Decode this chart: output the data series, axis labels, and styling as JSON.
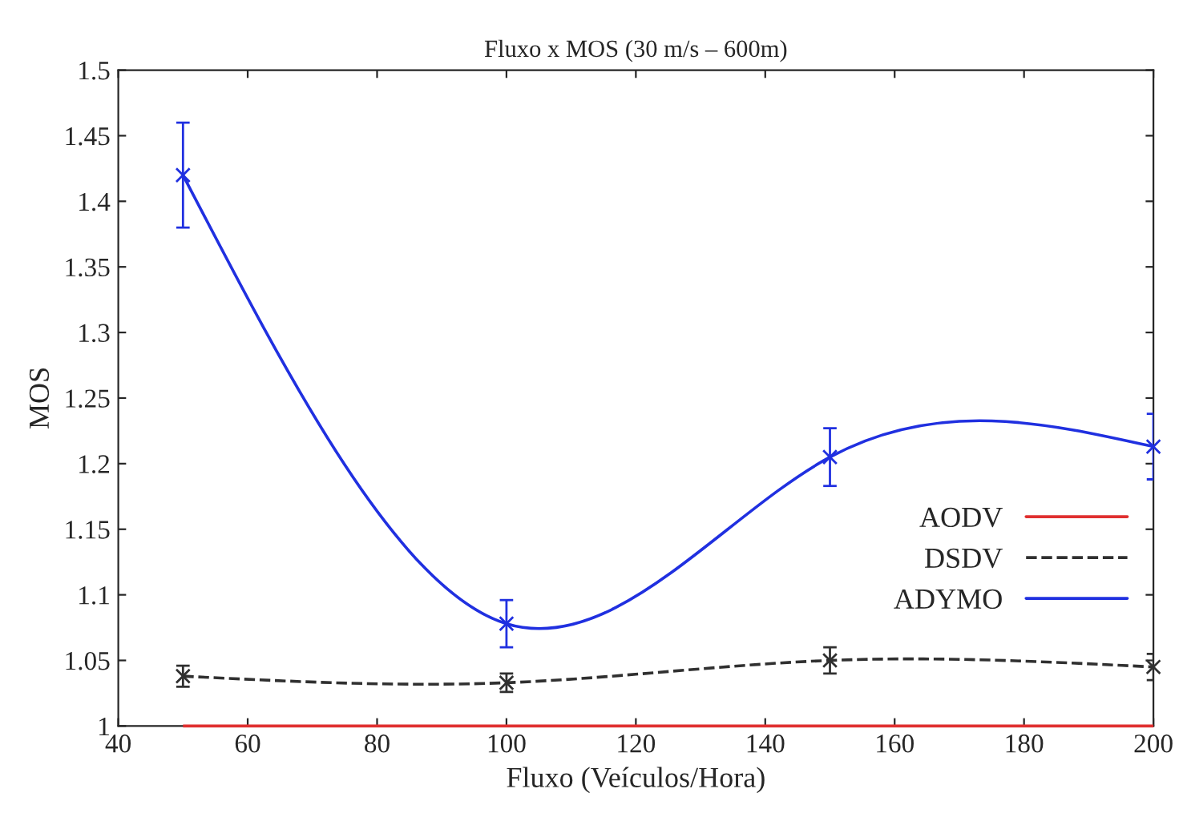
{
  "chart_data": {
    "type": "line",
    "title": "Fluxo x MOS (30 m/s – 600m)",
    "xlabel": "Fluxo (Veículos/Hora)",
    "ylabel": "MOS",
    "x": [
      50,
      100,
      150,
      200
    ],
    "series": [
      {
        "name": "AODV",
        "color": "#e03030",
        "values": [
          1,
          1,
          1,
          1
        ],
        "marker": "none",
        "line_style": "solid"
      },
      {
        "name": "DSDV",
        "color": "#303030",
        "values": [
          1.038,
          1.033,
          1.05,
          1.045
        ],
        "errors": [
          0.008,
          0.007,
          0.01,
          0.01
        ],
        "marker": "cross",
        "line_style": "dashed"
      },
      {
        "name": "ADYMO",
        "color": "#2030e0",
        "values": [
          1.42,
          1.078,
          1.205,
          1.213
        ],
        "errors": [
          0.04,
          0.018,
          0.022,
          0.025
        ],
        "marker": "cross",
        "line_style": "solid"
      }
    ],
    "xlim": [
      40,
      200
    ],
    "xticks": [
      40,
      60,
      80,
      100,
      120,
      140,
      160,
      180,
      200
    ],
    "ylim": [
      1,
      1.5
    ],
    "yticks": [
      1,
      1.05,
      1.1,
      1.15,
      1.2,
      1.25,
      1.3,
      1.35,
      1.4,
      1.45,
      1.5
    ],
    "grid": false,
    "legend": "bottom right"
  }
}
